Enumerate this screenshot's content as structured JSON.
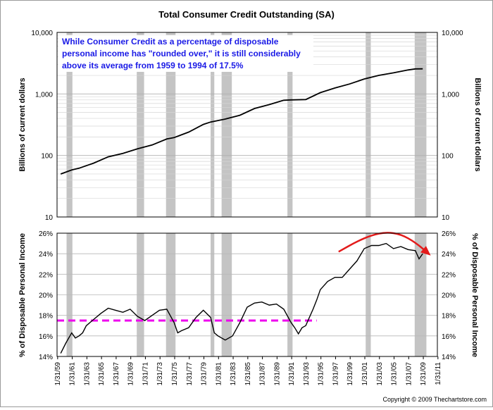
{
  "chart_data": [
    {
      "type": "line",
      "title": "Total Consumer Credit Outstanding (SA)",
      "ylabel_left": "Billions of current dollars",
      "ylabel_right": "Billions of current dollars",
      "yscale": "log",
      "ylim": [
        10,
        10000
      ],
      "yticks": [
        10,
        100,
        1000,
        10000
      ],
      "ytick_labels": [
        "10",
        "100",
        "1,000",
        "10,000"
      ],
      "annotation": [
        "While Consumer Credit as a percentage of disposable",
        "personal income has \"rounded over,\" it is still considerably",
        "above its average from 1959 to 1994 of 17.5%"
      ],
      "series": [
        {
          "name": "Total Consumer Credit Outstanding",
          "x": [
            1959.5,
            1961,
            1962,
            1964,
            1966,
            1968,
            1970,
            1972,
            1974,
            1975,
            1977,
            1979,
            1980,
            1982,
            1984,
            1986,
            1988,
            1990,
            1991,
            1993,
            1995,
            1997,
            1999,
            2001,
            2003,
            2005,
            2007,
            2008,
            2009
          ],
          "values": [
            50,
            58,
            62,
            75,
            95,
            108,
            128,
            148,
            185,
            195,
            240,
            320,
            350,
            390,
            450,
            580,
            670,
            790,
            800,
            810,
            1050,
            1250,
            1450,
            1750,
            2000,
            2200,
            2450,
            2550,
            2560
          ]
        }
      ]
    },
    {
      "type": "line",
      "ylabel_left": "% of Disposable Personal Income",
      "ylabel_right": "% of Disposable Personal Income",
      "ylim": [
        14,
        26
      ],
      "yticks": [
        14,
        16,
        18,
        20,
        22,
        24,
        26
      ],
      "ytick_labels": [
        "14%",
        "16%",
        "18%",
        "20%",
        "22%",
        "24%",
        "26%"
      ],
      "average_line": {
        "label": "average 1959-1994",
        "value": 17.5,
        "x_start": 1959,
        "x_end": 1994.5,
        "color": "#ee00ee"
      },
      "series": [
        {
          "name": "Consumer Credit as % of Disposable Personal Income",
          "x": [
            1959.5,
            1960.2,
            1961,
            1961.5,
            1962,
            1962.5,
            1963,
            1964,
            1965,
            1966,
            1967,
            1968,
            1969,
            1970,
            1971,
            1972,
            1973,
            1974,
            1975,
            1975.5,
            1976,
            1977,
            1978,
            1979,
            1980,
            1980.5,
            1981,
            1982,
            1983,
            1984,
            1985,
            1986,
            1987,
            1988,
            1989,
            1990,
            1991,
            1991.5,
            1992,
            1992.5,
            1993,
            1994,
            1994.5,
            1995,
            1996,
            1997,
            1998,
            1999,
            2000,
            2001,
            2002,
            2003,
            2004,
            2005,
            2006,
            2007,
            2008,
            2008.5,
            2009
          ],
          "values": [
            14.3,
            15.3,
            16.3,
            15.8,
            16.0,
            16.3,
            17.0,
            17.6,
            18.2,
            18.7,
            18.5,
            18.3,
            18.6,
            17.9,
            17.5,
            18.0,
            18.5,
            18.6,
            17.3,
            16.3,
            16.5,
            16.8,
            17.8,
            18.5,
            17.8,
            16.3,
            16.0,
            15.6,
            16.0,
            17.3,
            18.8,
            19.2,
            19.3,
            19.0,
            19.1,
            18.6,
            17.3,
            16.8,
            16.2,
            16.8,
            17.0,
            18.6,
            19.5,
            20.5,
            21.3,
            21.7,
            21.7,
            22.5,
            23.3,
            24.5,
            24.8,
            24.8,
            25.0,
            24.5,
            24.7,
            24.4,
            24.3,
            23.5,
            24.0
          ]
        }
      ],
      "trend_arrow": {
        "color": "#e31b1b",
        "x": [
          1997.5,
          2000,
          2002,
          2004,
          2006,
          2008,
          2009.8
        ],
        "values": [
          24.2,
          25.2,
          25.8,
          26.1,
          25.9,
          25.1,
          24.0
        ]
      }
    }
  ],
  "recessions": [
    [
      1960.3,
      1961.1
    ],
    [
      1969.9,
      1970.9
    ],
    [
      1973.9,
      1975.2
    ],
    [
      1980.0,
      1980.5
    ],
    [
      1981.5,
      1982.9
    ],
    [
      1990.5,
      1991.2
    ],
    [
      2001.2,
      2001.9
    ],
    [
      2007.9,
      2009.5
    ]
  ],
  "recession_color": "#c4c4c4",
  "x_axis": {
    "range": [
      1959,
      2011
    ],
    "ticks": [
      "1/31/59",
      "1/31/61",
      "1/31/63",
      "1/31/65",
      "1/31/67",
      "1/31/69",
      "1/31/71",
      "1/31/73",
      "1/31/75",
      "1/31/77",
      "1/31/79",
      "1/31/81",
      "1/31/83",
      "1/31/85",
      "1/31/87",
      "1/31/89",
      "1/31/91",
      "1/31/93",
      "1/31/95",
      "1/31/97",
      "1/31/99",
      "1/31/01",
      "1/31/03",
      "1/31/05",
      "1/31/07",
      "1/31/09",
      "1/31/11"
    ]
  },
  "copyright": "Copyright © 2009 Thechartstore.com"
}
